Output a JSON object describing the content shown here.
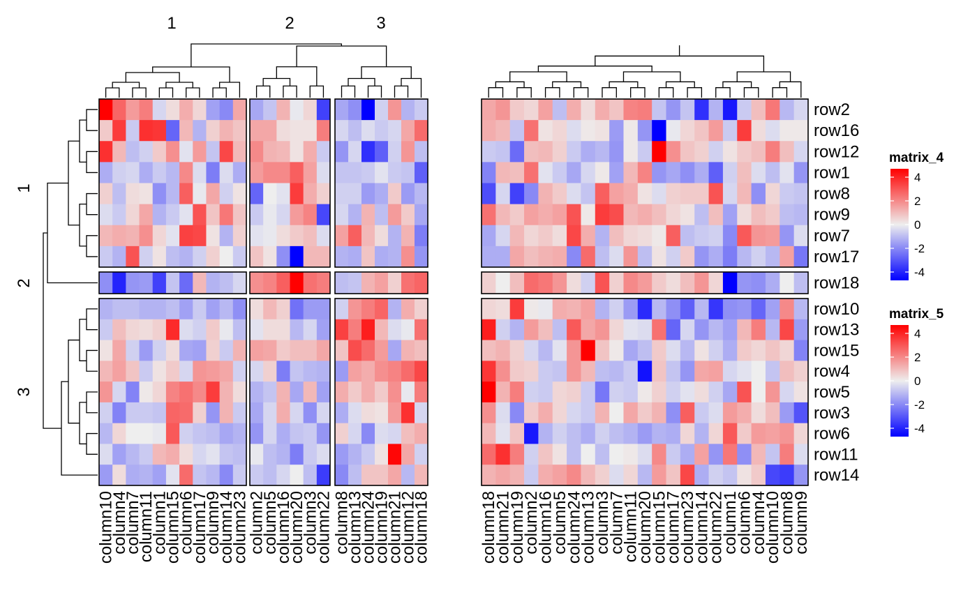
{
  "chart_data": {
    "type": "heatmap",
    "column_split_labels": [
      "1",
      "2",
      "3"
    ],
    "row_split_labels": [
      "1",
      "2",
      "3"
    ],
    "row_labels": [
      "row2",
      "row16",
      "row12",
      "row1",
      "row8",
      "row9",
      "row7",
      "row17",
      "row18",
      "row10",
      "row13",
      "row15",
      "row4",
      "row5",
      "row3",
      "row6",
      "row11",
      "row14"
    ],
    "matrix_4_columns": [
      [
        "column10",
        "column4",
        "column7",
        "column11",
        "column1",
        "column15",
        "column6",
        "column17",
        "column9",
        "column14",
        "column23"
      ],
      [
        "column2",
        "column5",
        "column16",
        "column20",
        "column3",
        "column22"
      ],
      [
        "column8",
        "column13",
        "column24",
        "column19",
        "column21",
        "column12",
        "column18"
      ]
    ],
    "matrix_5_columns": [
      "column18",
      "column21",
      "column19",
      "column2",
      "column16",
      "column5",
      "column24",
      "column13",
      "column3",
      "column7",
      "column11",
      "column20",
      "column15",
      "column17",
      "column23",
      "column14",
      "column22",
      "column1",
      "column6",
      "column4",
      "column10",
      "column8",
      "column9"
    ],
    "legends": [
      {
        "title": "matrix_4",
        "ticks": [
          "4",
          "2",
          "0",
          "-2",
          "-4"
        ],
        "range": [
          -4,
          4
        ]
      },
      {
        "title": "matrix_5",
        "ticks": [
          "4",
          "2",
          "0",
          "-2",
          "-4"
        ],
        "range": [
          -4,
          4
        ]
      }
    ],
    "colors": {
      "low": "#0000ff",
      "mid": "#eeeeee",
      "high": "#ff0000"
    },
    "matrix_4_values": [
      [
        4.0,
        2.3,
        1.4,
        1.9,
        -0.4,
        0.3,
        1.1,
        0.4,
        -1.3,
        -1.7,
        1.2,
        -1.2,
        -0.7,
        1.0,
        -0.1,
        0.4,
        -2.9,
        -1.2,
        -1.6,
        -4.2,
        -0.5,
        1.5,
        -1.0,
        -0.6
      ],
      [
        0.6,
        3.0,
        -0.6,
        3.2,
        3.1,
        -2.3,
        0.9,
        -1.0,
        0.5,
        1.0,
        0.7,
        1.2,
        1.2,
        0.3,
        0.2,
        0.2,
        1.9,
        -0.4,
        -0.8,
        -0.3,
        -0.6,
        -0.4,
        1.2,
        2.2
      ],
      [
        3.2,
        0.9,
        -0.8,
        -0.5,
        0.6,
        1.6,
        -0.2,
        1.4,
        -0.7,
        2.8,
        0.9,
        1.7,
        1.0,
        0.9,
        0.2,
        1.1,
        -0.6,
        -1.5,
        -0.4,
        -3.2,
        -2.4,
        -0.5,
        1.5,
        -0.8
      ],
      [
        -1.1,
        -0.5,
        -0.4,
        -1.1,
        -0.6,
        -0.9,
        1.7,
        -0.3,
        -1.9,
        -0.3,
        -1.1,
        1.4,
        1.7,
        1.7,
        2.4,
        1.3,
        -0.3,
        -0.7,
        -0.7,
        -0.6,
        -0.2,
        -0.6,
        -0.7,
        -2.4
      ],
      [
        0.5,
        -0.8,
        0.3,
        0.2,
        -1.6,
        -0.9,
        2.4,
        -0.1,
        1.2,
        -0.5,
        0.2,
        -2.3,
        0.0,
        -0.2,
        3.0,
        1.1,
        0.5,
        -0.5,
        -0.5,
        -1.4,
        -1.1,
        0.6,
        -1.4,
        -0.9
      ],
      [
        -0.3,
        -0.6,
        0.4,
        1.2,
        -1.0,
        -0.6,
        -0.2,
        2.6,
        0.7,
        2.0,
        0.7,
        -0.6,
        -0.1,
        -0.4,
        1.4,
        1.8,
        -2.8,
        -0.4,
        -1.0,
        1.0,
        -0.8,
        1.4,
        0.6,
        -1.2
      ],
      [
        0.9,
        1.1,
        1.0,
        1.6,
        0.4,
        -0.2,
        2.9,
        2.8,
        0.2,
        -1.0,
        0.5,
        -0.2,
        -0.1,
        0.3,
        0.6,
        0.8,
        -0.3,
        1.3,
        2.4,
        0.9,
        0.3,
        -1.0,
        1.0,
        -1.9
      ],
      [
        -0.6,
        -1.0,
        2.6,
        -0.5,
        0.2,
        -0.8,
        -1.0,
        -0.5,
        0.5,
        0.0,
        -0.6,
        0.7,
        0.2,
        -1.6,
        -4.3,
        0.9,
        0.9,
        -1.0,
        -1.1,
        0.7,
        -1.1,
        -1.0,
        1.6,
        -1.5
      ],
      [
        -1.6,
        -3.4,
        -1.5,
        -1.4,
        -2.9,
        -0.7,
        -2.2,
        0.9,
        -1.0,
        -0.8,
        -0.4,
        1.6,
        1.8,
        2.4,
        4.0,
        2.1,
        1.9,
        -0.8,
        -0.7,
        1.0,
        1.3,
        0.5,
        2.1,
        2.3
      ],
      [
        -1.0,
        -0.8,
        -0.8,
        -1.0,
        -1.0,
        -0.8,
        -1.3,
        -0.6,
        -1.3,
        -0.9,
        -1.6,
        0.3,
        0.9,
        0.5,
        -2.1,
        -1.4,
        -1.4,
        -0.5,
        1.5,
        1.9,
        2.3,
        -1.0,
        1.1,
        0.5
      ],
      [
        -0.6,
        0.8,
        0.4,
        0.3,
        0.5,
        3.3,
        -0.3,
        -0.5,
        0.6,
        -0.1,
        -0.8,
        -0.2,
        0.3,
        0.3,
        -0.9,
        -0.4,
        -1.3,
        2.9,
        1.9,
        3.5,
        0.9,
        -0.3,
        -0.1,
        2.1
      ],
      [
        0.2,
        1.2,
        -0.5,
        -1.4,
        -0.5,
        0.3,
        -1.2,
        -1.3,
        0.5,
        -0.6,
        1.0,
        1.3,
        1.2,
        0.6,
        0.8,
        0.8,
        1.2,
        0.7,
        2.7,
        2.2,
        1.4,
        -1.2,
        1.0,
        0.8
      ],
      [
        0.9,
        1.3,
        0.7,
        -0.6,
        0.2,
        0.6,
        -0.4,
        1.5,
        1.4,
        1.2,
        -0.5,
        -0.4,
        0.5,
        -1.9,
        -0.7,
        -0.9,
        -1.0,
        -1.4,
        1.3,
        1.1,
        1.6,
        1.8,
        2.2,
        2.8
      ],
      [
        1.5,
        -0.4,
        -1.8,
        0.1,
        0.4,
        1.8,
        2.1,
        1.7,
        3.0,
        1.0,
        0.3,
        -1.0,
        -0.7,
        1.0,
        -1.2,
        0.9,
        -1.3,
        1.1,
        0.6,
        1.1,
        0.6,
        1.6,
        -0.1,
        1.9
      ],
      [
        -0.5,
        -1.8,
        -0.6,
        -0.6,
        -0.7,
        2.3,
        2.2,
        0.5,
        -1.5,
        1.0,
        -0.6,
        -1.2,
        -0.4,
        1.1,
        -0.4,
        -1.6,
        -0.4,
        -1.1,
        -0.3,
        0.3,
        0.2,
        1.4,
        3.2,
        -0.4
      ],
      [
        -0.9,
        0.4,
        0.0,
        0.0,
        -0.1,
        2.5,
        -0.5,
        -0.7,
        -0.8,
        -1.2,
        -1.0,
        -1.5,
        -0.4,
        -1.1,
        -0.7,
        -0.6,
        -1.5,
        0.5,
        -0.4,
        -1.7,
        -0.3,
        -0.4,
        0.8,
        1.1
      ],
      [
        -0.3,
        -1.3,
        -0.9,
        -0.6,
        0.9,
        1.1,
        0.3,
        -0.4,
        -0.2,
        -0.7,
        -0.8,
        -0.1,
        -0.8,
        -1.0,
        -1.9,
        -0.6,
        -0.3,
        -1.4,
        -1.0,
        -0.6,
        0.2,
        3.9,
        1.2,
        -0.5
      ],
      [
        -1.4,
        0.3,
        -1.1,
        -1.0,
        -1.3,
        -0.2,
        2.2,
        -0.7,
        -0.9,
        -1.7,
        -0.6,
        -0.6,
        -0.8,
        -0.4,
        0.0,
        -0.8,
        -3.0,
        -1.7,
        -0.8,
        0.7,
        0.7,
        1.2,
        -0.9,
        0.9
      ]
    ],
    "matrix_5_values": [
      [
        1.2,
        1.5,
        0.6,
        0.4,
        1.3,
        -0.8,
        1.1,
        0.3,
        1.1,
        0.7,
        1.8,
        1.9,
        -0.7,
        -1.5,
        -0.7,
        -3.2,
        -1.0,
        -3.6,
        -0.6,
        0.8,
        2.0,
        -0.9,
        -0.4
      ],
      [
        1.1,
        0.9,
        -0.7,
        2.1,
        0.2,
        0.4,
        -0.3,
        0.1,
        0.2,
        -1.4,
        0.1,
        -1.5,
        -4.1,
        -0.1,
        0.4,
        0.7,
        1.4,
        -0.6,
        3.0,
        0.3,
        -0.3,
        0.1,
        0.1
      ],
      [
        -0.6,
        -0.7,
        -2.2,
        0.8,
        0.9,
        0.5,
        -0.6,
        -1.1,
        -0.9,
        -1.5,
        0.1,
        -0.6,
        4.2,
        1.6,
        0.7,
        0.5,
        -0.5,
        0.2,
        0.6,
        0.8,
        1.9,
        0.8,
        -0.4
      ],
      [
        -1.8,
        0.9,
        0.8,
        2.1,
        -0.2,
        -0.6,
        -1.2,
        -0.4,
        0.1,
        -1.3,
        0.9,
        1.8,
        -1.5,
        -1.2,
        -1.6,
        -1.1,
        -2.4,
        -0.5,
        0.8,
        -0.3,
        -0.8,
        -0.2,
        -1.5
      ],
      [
        -2.7,
        -0.4,
        -2.9,
        -1.7,
        1.0,
        0.6,
        -0.3,
        -0.7,
        2.4,
        1.3,
        1.1,
        0.2,
        -0.3,
        0.5,
        0.6,
        0.6,
        2.6,
        -0.4,
        0.9,
        -1.6,
        0.4,
        -0.6,
        -0.7
      ],
      [
        2.1,
        0.9,
        0.6,
        1.3,
        1.1,
        1.3,
        2.6,
        0.1,
        3.0,
        2.7,
        0.9,
        1.1,
        0.8,
        0.4,
        0.2,
        -0.8,
        0.8,
        -1.3,
        0.3,
        0.8,
        0.6,
        -0.8,
        -0.9
      ],
      [
        -1.2,
        -0.4,
        0.9,
        0.4,
        0.6,
        0.3,
        2.8,
        1.1,
        -1.0,
        0.8,
        0.4,
        0.3,
        0.1,
        2.4,
        -0.8,
        -0.6,
        -0.5,
        -1.7,
        2.5,
        1.5,
        1.4,
        -1.5,
        -0.3
      ],
      [
        -1.1,
        -1.1,
        1.2,
        0.8,
        1.0,
        1.1,
        -1.7,
        2.2,
        -0.8,
        -0.3,
        1.5,
        -0.8,
        0.2,
        -0.5,
        0.6,
        -1.5,
        -1.1,
        -1.9,
        -0.9,
        -0.5,
        -0.9,
        1.3,
        -2.0
      ],
      [
        0.5,
        0.0,
        0.8,
        2.2,
        2.0,
        1.5,
        0.3,
        -0.5,
        2.6,
        0.5,
        1.7,
        1.4,
        0.6,
        0.3,
        0.8,
        1.5,
        0.4,
        -4.5,
        -1.5,
        -1.6,
        -1.1,
        0.0,
        -0.8
      ],
      [
        0.4,
        0.3,
        3.0,
        0.1,
        -0.1,
        1.1,
        1.0,
        1.3,
        -1.0,
        -0.5,
        -1.4,
        -3.3,
        -0.9,
        -1.6,
        -2.4,
        -0.9,
        -3.1,
        -1.6,
        -1.5,
        -2.3,
        -1.3,
        1.7,
        -0.9
      ],
      [
        3.5,
        -0.5,
        -1.0,
        1.4,
        0.8,
        -0.8,
        2.5,
        1.2,
        1.5,
        0.4,
        -0.2,
        -0.3,
        2.1,
        -2.3,
        -0.4,
        -1.5,
        -0.9,
        -1.3,
        0.9,
        1.9,
        -0.9,
        2.8,
        -1.4
      ],
      [
        0.8,
        1.0,
        0.5,
        -0.4,
        -0.9,
        -0.2,
        1.5,
        4.0,
        0.7,
        0.1,
        -1.2,
        -0.8,
        0.6,
        -0.3,
        -0.9,
        0.2,
        -0.5,
        -1.1,
        0.6,
        0.4,
        0.7,
        0.4,
        -1.8
      ],
      [
        3.1,
        1.6,
        0.6,
        0.5,
        -0.6,
        -0.7,
        1.5,
        0.9,
        -0.8,
        -0.9,
        -0.6,
        -3.7,
        0.7,
        -0.7,
        -1.5,
        1.2,
        1.3,
        -0.4,
        -0.2,
        0.0,
        -0.7,
        0.8,
        0.5
      ],
      [
        4.0,
        1.0,
        1.9,
        -0.5,
        -0.6,
        0.4,
        0.5,
        -0.6,
        -2.0,
        -0.5,
        -0.6,
        0.1,
        0.5,
        -0.5,
        -0.2,
        0.3,
        -0.5,
        -1.2,
        2.6,
        0.0,
        1.5,
        -0.4,
        0.2
      ],
      [
        1.6,
        -0.3,
        -1.7,
        0.6,
        1.1,
        0.4,
        -0.4,
        -0.6,
        1.0,
        0.0,
        1.2,
        0.6,
        1.0,
        -1.6,
        2.4,
        -0.6,
        -0.3,
        1.4,
        1.1,
        0.3,
        0.8,
        -1.4,
        -2.6
      ],
      [
        0.9,
        -0.2,
        0.7,
        -3.6,
        -1.0,
        -0.5,
        -0.8,
        -1.1,
        -0.5,
        -0.8,
        -1.0,
        -1.4,
        -1.0,
        -1.1,
        0.4,
        -1.0,
        0.4,
        2.5,
        0.6,
        1.4,
        1.3,
        1.5,
        0.4
      ],
      [
        2.2,
        3.2,
        1.9,
        -0.5,
        0.7,
        0.2,
        -0.8,
        0.0,
        -0.8,
        0.0,
        0.1,
        -0.3,
        1.7,
        -0.6,
        -1.1,
        1.3,
        -1.5,
        2.0,
        -1.6,
        0.9,
        -0.7,
        1.9,
        -0.3
      ],
      [
        1.0,
        1.2,
        1.0,
        -0.6,
        1.1,
        1.3,
        1.7,
        0.9,
        0.5,
        -0.3,
        0.4,
        -0.9,
        1.4,
        0.7,
        2.8,
        -1.1,
        -0.5,
        -0.7,
        0.2,
        0.6,
        -2.8,
        -3.0,
        -1.5
      ]
    ]
  }
}
